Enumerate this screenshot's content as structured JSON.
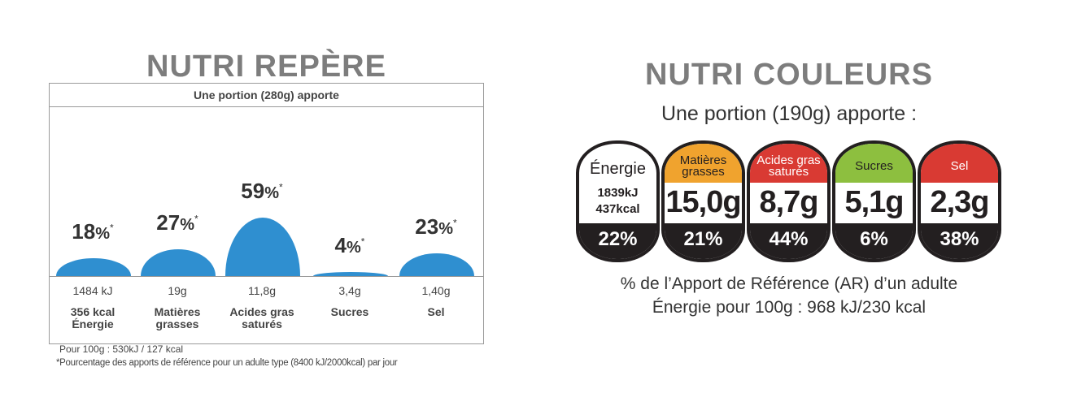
{
  "nutri_repere": {
    "title": "NUTRI REPÈRE",
    "portion": "Une portion (280g) apporte",
    "items": [
      {
        "percent": "18",
        "amount": "1484 kJ",
        "label_line1": "356 kcal",
        "label_line2": "Énergie"
      },
      {
        "percent": "27",
        "amount": "19g",
        "label_line1": "Matières",
        "label_line2": "grasses"
      },
      {
        "percent": "59",
        "amount": "11,8g",
        "label_line1": "Acides gras",
        "label_line2": "saturés"
      },
      {
        "percent": "4",
        "amount": "3,4g",
        "label_line1": "Sucres",
        "label_line2": ""
      },
      {
        "percent": "23",
        "amount": "1,40g",
        "label_line1": "Sel",
        "label_line2": ""
      }
    ],
    "percent_sign": "%",
    "asterisk": "*",
    "footnote_per100": "Pour 100g : 530kJ / 127 kcal",
    "footnote_reference": "*Pourcentage des apports de référence pour un adulte type (8400 kJ/2000kcal) par jour"
  },
  "nutri_couleurs": {
    "title": "NUTRI COULEURS",
    "portion": "Une portion (190g) apporte :",
    "energy_tile": {
      "label": "Énergie",
      "kj": "1839kJ",
      "kcal": "437kcal",
      "percent": "22%"
    },
    "tiles": [
      {
        "label": "Matières grasses",
        "value": "15,0g",
        "percent": "21%",
        "color": "#f0a32e"
      },
      {
        "label": "Acides gras saturés",
        "value": "8,7g",
        "percent": "44%",
        "color": "#d93a33"
      },
      {
        "label": "Sucres",
        "value": "5,1g",
        "percent": "6%",
        "color": "#8dbf3f"
      },
      {
        "label": "Sel",
        "value": "2,3g",
        "percent": "38%",
        "color": "#d93a33"
      }
    ],
    "ar_note": "% de l’Apport de Référence (AR) d’un adulte",
    "energy_per100": "Énergie pour 100g : 968 kJ/230 kcal"
  }
}
